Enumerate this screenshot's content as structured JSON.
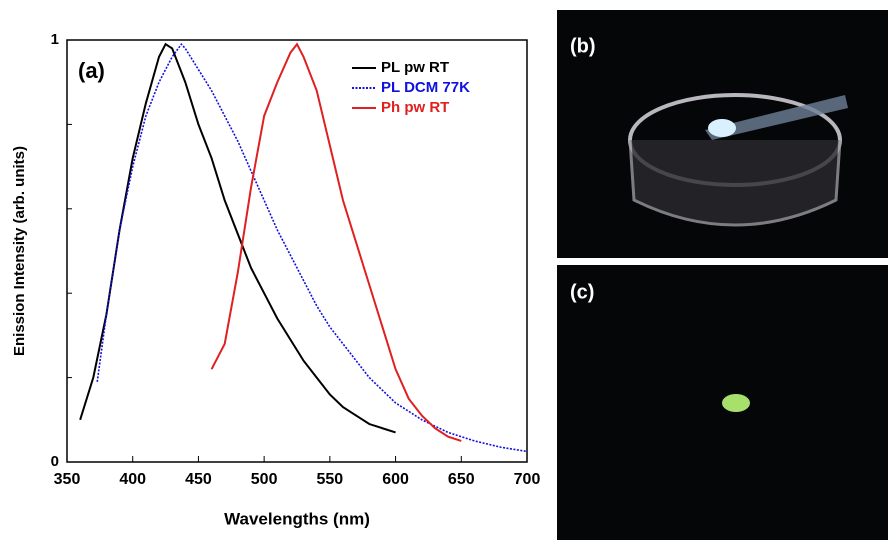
{
  "chart_data": {
    "type": "line",
    "annotation": "(a)",
    "x_label": "Wavelengths (nm)",
    "y_label": "Enission Intensity (arb. units)",
    "xlim": [
      350,
      700
    ],
    "xticks": [
      350,
      400,
      450,
      500,
      550,
      600,
      650,
      700
    ],
    "ylim": [
      0,
      1
    ],
    "yticks": [
      0,
      1
    ],
    "yminorticks": [
      0.2,
      0.4,
      0.6,
      0.8
    ],
    "legend": "upper right",
    "series": [
      {
        "name": "PL pw RT",
        "color": "#000000",
        "dash": false,
        "x": [
          360,
          370,
          380,
          390,
          400,
          410,
          420,
          425,
          430,
          440,
          450,
          460,
          470,
          480,
          490,
          500,
          510,
          520,
          530,
          540,
          550,
          560,
          570,
          580,
          590,
          600
        ],
        "values": [
          0.1,
          0.2,
          0.35,
          0.55,
          0.72,
          0.85,
          0.96,
          0.99,
          0.98,
          0.9,
          0.8,
          0.72,
          0.62,
          0.54,
          0.46,
          0.4,
          0.34,
          0.29,
          0.24,
          0.2,
          0.16,
          0.13,
          0.11,
          0.09,
          0.08,
          0.07
        ]
      },
      {
        "name": "PL DCM 77K",
        "color": "#1010e0",
        "dash": true,
        "x": [
          373,
          380,
          390,
          400,
          410,
          420,
          430,
          437,
          440,
          450,
          460,
          470,
          480,
          490,
          500,
          510,
          520,
          530,
          540,
          550,
          560,
          570,
          580,
          590,
          600,
          620,
          640,
          660,
          680,
          700
        ],
        "values": [
          0.19,
          0.35,
          0.55,
          0.7,
          0.82,
          0.9,
          0.96,
          0.99,
          0.98,
          0.93,
          0.88,
          0.82,
          0.76,
          0.69,
          0.62,
          0.55,
          0.49,
          0.43,
          0.37,
          0.32,
          0.28,
          0.24,
          0.2,
          0.17,
          0.14,
          0.1,
          0.07,
          0.05,
          0.035,
          0.025
        ]
      },
      {
        "name": "Ph pw RT",
        "color": "#e02020",
        "dash": false,
        "x": [
          460,
          470,
          480,
          490,
          500,
          510,
          520,
          525,
          530,
          540,
          550,
          560,
          570,
          580,
          590,
          600,
          610,
          620,
          630,
          640,
          650
        ],
        "values": [
          0.22,
          0.28,
          0.45,
          0.65,
          0.82,
          0.9,
          0.97,
          0.99,
          0.96,
          0.88,
          0.75,
          0.62,
          0.52,
          0.42,
          0.32,
          0.22,
          0.15,
          0.11,
          0.08,
          0.06,
          0.05
        ]
      }
    ]
  },
  "photos": [
    {
      "label": "(b)"
    },
    {
      "label": "(c)"
    }
  ]
}
